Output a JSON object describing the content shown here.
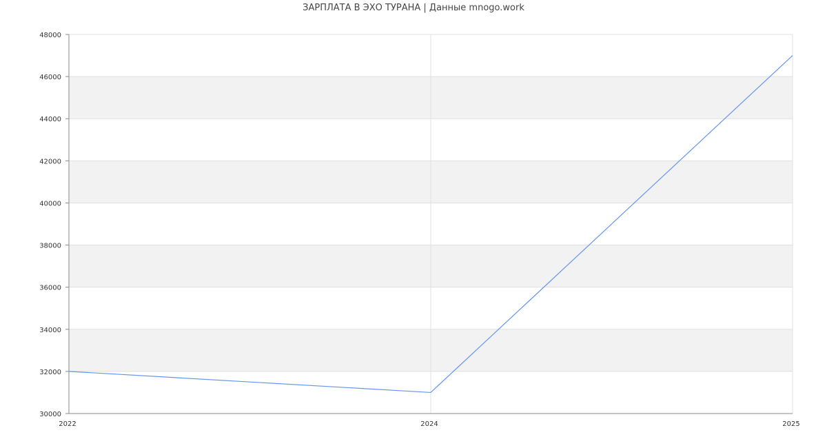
{
  "chart_data": {
    "type": "line",
    "title": "ЗАРПЛАТА В ЭХО ТУРАНА | Данные mnogo.work",
    "xlabel": "",
    "ylabel": "",
    "categories": [
      "2022",
      "2024",
      "2025"
    ],
    "series": [
      {
        "values": [
          32000,
          31000,
          47000
        ],
        "color": "#6495ed"
      }
    ],
    "ylim": [
      30000,
      48000
    ],
    "yticks": [
      30000,
      32000,
      34000,
      36000,
      38000,
      40000,
      42000,
      44000,
      46000,
      48000
    ],
    "grid": true,
    "band_color": "#f2f2f2",
    "grid_color": "#e0e0e0",
    "axis_color": "#888888"
  }
}
